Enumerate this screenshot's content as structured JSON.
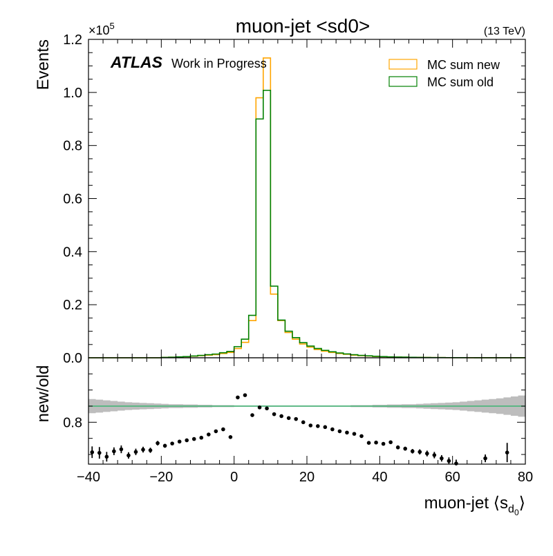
{
  "chart_data": {
    "type": "step-histogram-with-ratio",
    "title": "muon-jet <sd0>",
    "energy_label": "(13 TeV)",
    "experiment_label": "ATLAS",
    "status_label": "Work in Progress",
    "ylabel": "Events",
    "y_multiplier_label": "×10",
    "y_multiplier_exponent": "5",
    "xlabel": "muon-jet ",
    "xlabel_symbol": "⟨s",
    "xlabel_sub": "d",
    "xlabel_subsub": "0",
    "xlabel_close": "⟩",
    "ratio_ylabel": "new/old",
    "xlim": [
      -40,
      80
    ],
    "ylim": [
      0,
      120000
    ],
    "ratio_ylim": [
      0.67,
      1.0
    ],
    "x_ticks": [
      -40,
      -20,
      0,
      20,
      40,
      60,
      80
    ],
    "x_tick_labels": [
      "−40",
      "−20",
      "0",
      "20",
      "40",
      "60",
      "80"
    ],
    "y_ticks": [
      0,
      20000,
      40000,
      60000,
      80000,
      100000,
      120000
    ],
    "y_tick_labels": [
      "0.0",
      "0.2",
      "0.4",
      "0.6",
      "0.8",
      "1.0",
      "1.2"
    ],
    "ratio_ticks": [
      0.8
    ],
    "ratio_tick_labels": [
      "0.8"
    ],
    "bin_width": 2,
    "x_edges_start": -40,
    "series": [
      {
        "name": "MC sum new",
        "color": "#FFA500",
        "values": [
          0,
          0,
          0,
          0,
          0,
          0,
          0,
          0,
          0,
          0,
          150,
          200,
          300,
          400,
          600,
          800,
          1000,
          1200,
          1600,
          2000,
          3500,
          5800,
          14000,
          98000,
          113000,
          24000,
          14000,
          9500,
          7000,
          5200,
          4000,
          3100,
          2500,
          2000,
          1600,
          1300,
          1000,
          800,
          650,
          500,
          400,
          320,
          260,
          210,
          170,
          140,
          110,
          90,
          70,
          55,
          45,
          35,
          28,
          22,
          18,
          14,
          11,
          9,
          7,
          5
        ]
      },
      {
        "name": "MC sum old",
        "color": "#008000",
        "values": [
          0,
          0,
          0,
          0,
          0,
          0,
          0,
          0,
          0,
          0,
          160,
          220,
          340,
          450,
          680,
          900,
          1150,
          1400,
          1900,
          2400,
          4200,
          7000,
          16000,
          90000,
          100800,
          27000,
          14200,
          10000,
          7600,
          5700,
          4400,
          3500,
          2800,
          2250,
          1800,
          1450,
          1150,
          900,
          720,
          560,
          450,
          360,
          290,
          235,
          190,
          155,
          125,
          100,
          80,
          63,
          50,
          40,
          32,
          25,
          20,
          16,
          12,
          10,
          8,
          6
        ]
      }
    ],
    "ratio_band": {
      "center": 0.85,
      "halfwidth": [
        0.022,
        0.02,
        0.018,
        0.016,
        0.014,
        0.012,
        0.011,
        0.01,
        0.009,
        0.008,
        0.007,
        0.006,
        0.006,
        0.005,
        0.005,
        0.004,
        0.004,
        0.003,
        0.003,
        0.003,
        0.002,
        0.002,
        0.002,
        0.002,
        0.002,
        0.002,
        0.002,
        0.002,
        0.002,
        0.002,
        0.002,
        0.002,
        0.002,
        0.002,
        0.002,
        0.002,
        0.003,
        0.003,
        0.003,
        0.004,
        0.004,
        0.005,
        0.005,
        0.006,
        0.006,
        0.007,
        0.008,
        0.009,
        0.01,
        0.011,
        0.012,
        0.014,
        0.016,
        0.018,
        0.02,
        0.022,
        0.024,
        0.027,
        0.03,
        0.033
      ]
    },
    "ratio_line_color": "#3cb371",
    "ratio_points": [
      {
        "x": -39,
        "y": 0.707,
        "err": 0.018
      },
      {
        "x": -37,
        "y": 0.705,
        "err": 0.018
      },
      {
        "x": -35,
        "y": 0.693,
        "err": 0.015
      },
      {
        "x": -33,
        "y": 0.71,
        "err": 0.012
      },
      {
        "x": -31,
        "y": 0.716,
        "err": 0.012
      },
      {
        "x": -29,
        "y": 0.697,
        "err": 0.01
      },
      {
        "x": -27,
        "y": 0.708,
        "err": 0.01
      },
      {
        "x": -25,
        "y": 0.715,
        "err": 0.009
      },
      {
        "x": -23,
        "y": 0.713,
        "err": 0.008
      },
      {
        "x": -21,
        "y": 0.735,
        "err": 0.007
      },
      {
        "x": -19,
        "y": 0.727,
        "err": 0.006
      },
      {
        "x": -17,
        "y": 0.734,
        "err": 0.005
      },
      {
        "x": -15,
        "y": 0.74,
        "err": 0.004
      },
      {
        "x": -13,
        "y": 0.744,
        "err": 0.004
      },
      {
        "x": -11,
        "y": 0.748,
        "err": 0.003
      },
      {
        "x": -9,
        "y": 0.752,
        "err": 0.003
      },
      {
        "x": -7,
        "y": 0.762,
        "err": 0.003
      },
      {
        "x": -5,
        "y": 0.772,
        "err": 0.002
      },
      {
        "x": -3,
        "y": 0.778,
        "err": 0.002
      },
      {
        "x": -1,
        "y": 0.754,
        "err": 0.002
      },
      {
        "x": 1,
        "y": 0.877,
        "err": 0.002
      },
      {
        "x": 3,
        "y": 0.884,
        "err": 0.002
      },
      {
        "x": 5,
        "y": 0.822,
        "err": 0.002
      },
      {
        "x": 7,
        "y": 0.846,
        "err": 0.002
      },
      {
        "x": 9,
        "y": 0.843,
        "err": 0.002
      },
      {
        "x": 11,
        "y": 0.825,
        "err": 0.002
      },
      {
        "x": 13,
        "y": 0.819,
        "err": 0.002
      },
      {
        "x": 15,
        "y": 0.813,
        "err": 0.002
      },
      {
        "x": 17,
        "y": 0.81,
        "err": 0.002
      },
      {
        "x": 19,
        "y": 0.8,
        "err": 0.002
      },
      {
        "x": 21,
        "y": 0.79,
        "err": 0.002
      },
      {
        "x": 23,
        "y": 0.788,
        "err": 0.003
      },
      {
        "x": 25,
        "y": 0.785,
        "err": 0.003
      },
      {
        "x": 27,
        "y": 0.778,
        "err": 0.003
      },
      {
        "x": 29,
        "y": 0.772,
        "err": 0.003
      },
      {
        "x": 31,
        "y": 0.768,
        "err": 0.003
      },
      {
        "x": 33,
        "y": 0.764,
        "err": 0.003
      },
      {
        "x": 35,
        "y": 0.757,
        "err": 0.004
      },
      {
        "x": 37,
        "y": 0.736,
        "err": 0.004
      },
      {
        "x": 39,
        "y": 0.737,
        "err": 0.004
      },
      {
        "x": 41,
        "y": 0.733,
        "err": 0.005
      },
      {
        "x": 43,
        "y": 0.738,
        "err": 0.005
      },
      {
        "x": 45,
        "y": 0.722,
        "err": 0.006
      },
      {
        "x": 47,
        "y": 0.718,
        "err": 0.006
      },
      {
        "x": 49,
        "y": 0.71,
        "err": 0.007
      },
      {
        "x": 51,
        "y": 0.708,
        "err": 0.008
      },
      {
        "x": 53,
        "y": 0.703,
        "err": 0.009
      },
      {
        "x": 55,
        "y": 0.698,
        "err": 0.01
      },
      {
        "x": 57,
        "y": 0.688,
        "err": 0.01
      },
      {
        "x": 59,
        "y": 0.68,
        "err": 0.011
      },
      {
        "x": 61,
        "y": 0.672,
        "err": 0.012
      },
      {
        "x": 69,
        "y": 0.688,
        "err": 0.012
      },
      {
        "x": 75,
        "y": 0.706,
        "err": 0.03
      }
    ],
    "legend": [
      {
        "label": "MC sum new",
        "color": "#FFA500"
      },
      {
        "label": "MC sum old",
        "color": "#008000"
      }
    ],
    "legend_position": "top-right",
    "grid": false
  }
}
